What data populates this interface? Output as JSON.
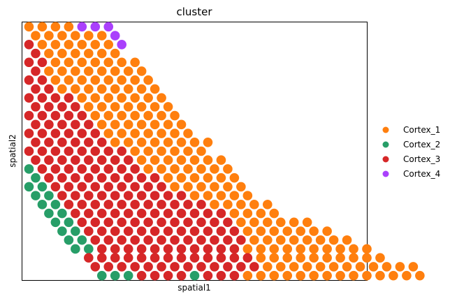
{
  "chart_data": {
    "type": "scatter",
    "title": "cluster",
    "xlabel": "spatial1",
    "ylabel": "spatial2",
    "xticks": false,
    "yticks": false,
    "grid": false,
    "legend_position": "right",
    "xlim": [
      -0.5,
      25.5
    ],
    "ylim": [
      -0.5,
      28.5
    ],
    "series": [
      {
        "name": "Cortex_1",
        "color": "#ff7f0e"
      },
      {
        "name": "Cortex_2",
        "color": "#279e68"
      },
      {
        "name": "Cortex_3",
        "color": "#d62728"
      },
      {
        "name": "Cortex_4",
        "color": "#aa40fc"
      }
    ],
    "rows": [
      {
        "y": 28,
        "x0": 0,
        "labels": "1111444"
      },
      {
        "y": 27,
        "x0": 0.5,
        "labels": "1111114"
      },
      {
        "y": 26,
        "x0": 0,
        "labels": "31111114"
      },
      {
        "y": 25,
        "x0": 0.5,
        "labels": "3111111"
      },
      {
        "y": 24,
        "x0": 0,
        "labels": "331111111"
      },
      {
        "y": 23,
        "x0": 0.5,
        "labels": "311111111"
      },
      {
        "y": 22,
        "x0": 0,
        "labels": "3311111111"
      },
      {
        "y": 21,
        "x0": 0.5,
        "labels": "3311111111"
      },
      {
        "y": 20,
        "x0": 0,
        "labels": "33331111111"
      },
      {
        "y": 19,
        "x0": 0.5,
        "labels": "33331111111"
      },
      {
        "y": 18,
        "x0": 0,
        "labels": "333331111111"
      },
      {
        "y": 17,
        "x0": 0.5,
        "labels": "333331111111"
      },
      {
        "y": 16,
        "x0": 0,
        "labels": "3333331111111"
      },
      {
        "y": 15,
        "x0": 0.5,
        "labels": "33333311111111"
      },
      {
        "y": 14,
        "x0": 0,
        "labels": "33333333111111"
      },
      {
        "y": 13,
        "x0": 0.5,
        "labels": "333333331111111"
      },
      {
        "y": 12,
        "x0": 0,
        "labels": "2333333331111111"
      },
      {
        "y": 11,
        "x0": 0.5,
        "labels": "2333333333111111"
      },
      {
        "y": 10,
        "x0": 0,
        "labels": "22333333333111111"
      },
      {
        "y": 9,
        "x0": 0.5,
        "labels": "22333333333311111"
      },
      {
        "y": 8,
        "x0": 1,
        "labels": "223333333333311111"
      },
      {
        "y": 7,
        "x0": 1.5,
        "labels": "223333333333331111"
      },
      {
        "y": 6,
        "x0": 2,
        "labels": "22333333333333111111"
      },
      {
        "y": 5,
        "x0": 2.5,
        "labels": "223333333333331111111"
      },
      {
        "y": 4,
        "x0": 3,
        "labels": "2233333333333311111111"
      },
      {
        "y": 3,
        "x0": 3.5,
        "labels": "22333333333331111111111"
      },
      {
        "y": 2,
        "x0": 4.5,
        "labels": "33333333333331111111111"
      },
      {
        "y": 1,
        "x0": 5,
        "labels": "3333333333333111111111111"
      },
      {
        "y": 0,
        "x0": 5.5,
        "labels": "2223333233311111111111111"
      }
    ]
  }
}
